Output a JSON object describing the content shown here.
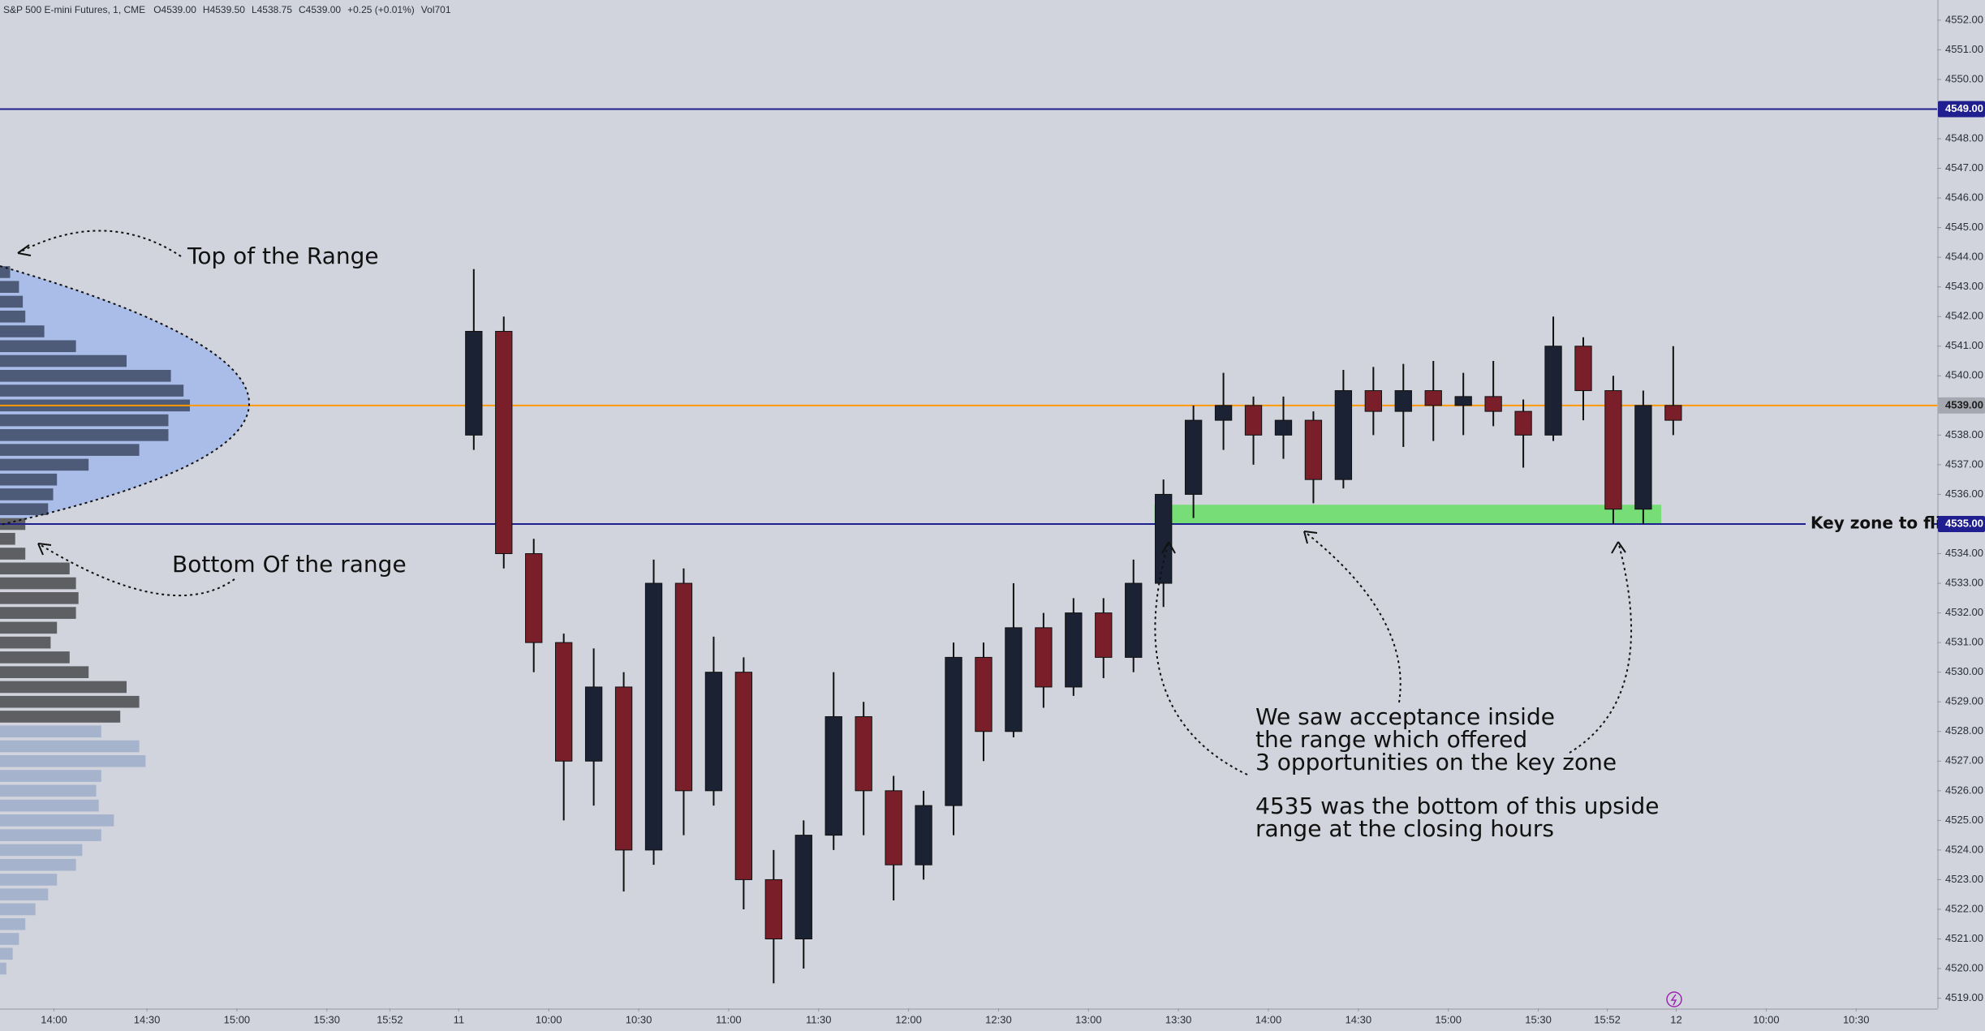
{
  "chart_data": {
    "type": "candlestick",
    "title": "S&P 500 E-mini Futures, 1, CME",
    "ohlc_readout": [
      "O4539.00",
      "H4539.50",
      "L4538.75",
      "C4539.00",
      "+0.25 (+0.01%)",
      "Vol701"
    ],
    "up_color": "#1b2233",
    "down_color": "#7a1f2a",
    "xlim": [
      -153,
      493
    ],
    "xticks": [
      {
        "value": -135,
        "label": "14:00"
      },
      {
        "value": -104,
        "label": "14:30"
      },
      {
        "value": -74,
        "label": "15:00"
      },
      {
        "value": -44,
        "label": "15:30"
      },
      {
        "value": -23,
        "label": "15:52"
      },
      {
        "value": 0,
        "label": "11"
      },
      {
        "value": 30,
        "label": "10:00"
      },
      {
        "value": 60,
        "label": "10:30"
      },
      {
        "value": 90,
        "label": "11:00"
      },
      {
        "value": 120,
        "label": "11:30"
      },
      {
        "value": 150,
        "label": "12:00"
      },
      {
        "value": 180,
        "label": "12:30"
      },
      {
        "value": 210,
        "label": "13:00"
      },
      {
        "value": 240,
        "label": "13:30"
      },
      {
        "value": 270,
        "label": "14:00"
      },
      {
        "value": 300,
        "label": "14:30"
      },
      {
        "value": 330,
        "label": "15:00"
      },
      {
        "value": 360,
        "label": "15:30"
      },
      {
        "value": 383,
        "label": "15:52"
      },
      {
        "value": 406,
        "label": "12"
      },
      {
        "value": 436,
        "label": "10:00"
      },
      {
        "value": 466,
        "label": "10:30"
      }
    ],
    "ylim": [
      4518.66,
      4552.68
    ],
    "yticks": [
      {
        "value": 4519,
        "label": "4519.00"
      },
      {
        "value": 4520,
        "label": "4520.00"
      },
      {
        "value": 4521,
        "label": "4521.00"
      },
      {
        "value": 4522,
        "label": "4522.00"
      },
      {
        "value": 4523,
        "label": "4523.00"
      },
      {
        "value": 4524,
        "label": "4524.00"
      },
      {
        "value": 4525,
        "label": "4525.00"
      },
      {
        "value": 4526,
        "label": "4526.00"
      },
      {
        "value": 4527,
        "label": "4527.00"
      },
      {
        "value": 4528,
        "label": "4528.00"
      },
      {
        "value": 4529,
        "label": "4529.00"
      },
      {
        "value": 4530,
        "label": "4530.00"
      },
      {
        "value": 4531,
        "label": "4531.00"
      },
      {
        "value": 4532,
        "label": "4532.00"
      },
      {
        "value": 4533,
        "label": "4533.00"
      },
      {
        "value": 4534,
        "label": "4534.00"
      },
      {
        "value": 4536,
        "label": "4536.00"
      },
      {
        "value": 4537,
        "label": "4537.00"
      },
      {
        "value": 4538,
        "label": "4538.00"
      },
      {
        "value": 4540,
        "label": "4540.00"
      },
      {
        "value": 4541,
        "label": "4541.00"
      },
      {
        "value": 4542,
        "label": "4542.00"
      },
      {
        "value": 4543,
        "label": "4543.00"
      },
      {
        "value": 4544,
        "label": "4544.00"
      },
      {
        "value": 4545,
        "label": "4545.00"
      },
      {
        "value": 4546,
        "label": "4546.00"
      },
      {
        "value": 4547,
        "label": "4547.00"
      },
      {
        "value": 4548,
        "label": "4548.00"
      },
      {
        "value": 4550,
        "label": "4550.00"
      },
      {
        "value": 4551,
        "label": "4551.00"
      },
      {
        "value": 4552,
        "label": "4552.00"
      }
    ],
    "hlines": [
      {
        "price": 4549,
        "label": "4549.00",
        "color": "#1f1f8f",
        "label_bg": "#1f1f8f",
        "label_color": "#ffffff"
      },
      {
        "price": 4539,
        "label": "4539.00",
        "color": "#ff9800",
        "label_bg": "#a5a8b0",
        "label_color": "#1b1b1b"
      },
      {
        "price": 4535,
        "label": "4535.00",
        "color": "#1f1f8f",
        "label_bg": "#1f1f8f",
        "label_color": "#ffffff",
        "note": "Key zone to flip"
      }
    ],
    "zone": {
      "t": [
        232,
        401
      ],
      "price": [
        4535,
        4535.65
      ],
      "color": "#77dd77"
    },
    "candles": [
      {
        "t": 0,
        "o": 4538,
        "h": 4543.6,
        "l": 4537.5,
        "c": 4541.5
      },
      {
        "t": 10,
        "o": 4541.5,
        "h": 4542,
        "l": 4533.5,
        "c": 4534
      },
      {
        "t": 20,
        "o": 4534,
        "h": 4534.5,
        "l": 4530,
        "c": 4531
      },
      {
        "t": 30,
        "o": 4531,
        "h": 4531.3,
        "l": 4525,
        "c": 4527
      },
      {
        "t": 40,
        "o": 4527,
        "h": 4530.8,
        "l": 4525.5,
        "c": 4529.5
      },
      {
        "t": 50,
        "o": 4529.5,
        "h": 4530,
        "l": 4522.6,
        "c": 4524
      },
      {
        "t": 60,
        "o": 4524,
        "h": 4533.8,
        "l": 4523.5,
        "c": 4533
      },
      {
        "t": 70,
        "o": 4533,
        "h": 4533.5,
        "l": 4524.5,
        "c": 4526
      },
      {
        "t": 80,
        "o": 4526,
        "h": 4531.2,
        "l": 4525.5,
        "c": 4530
      },
      {
        "t": 90,
        "o": 4530,
        "h": 4530.5,
        "l": 4522,
        "c": 4523
      },
      {
        "t": 100,
        "o": 4523,
        "h": 4524,
        "l": 4519.5,
        "c": 4521
      },
      {
        "t": 110,
        "o": 4521,
        "h": 4525,
        "l": 4520,
        "c": 4524.5
      },
      {
        "t": 120,
        "o": 4524.5,
        "h": 4530,
        "l": 4524,
        "c": 4528.5
      },
      {
        "t": 130,
        "o": 4528.5,
        "h": 4529,
        "l": 4524.5,
        "c": 4526
      },
      {
        "t": 140,
        "o": 4526,
        "h": 4526.5,
        "l": 4522.3,
        "c": 4523.5
      },
      {
        "t": 150,
        "o": 4523.5,
        "h": 4526,
        "l": 4523,
        "c": 4525.5
      },
      {
        "t": 160,
        "o": 4525.5,
        "h": 4531,
        "l": 4524.5,
        "c": 4530.5
      },
      {
        "t": 170,
        "o": 4530.5,
        "h": 4531,
        "l": 4527,
        "c": 4528
      },
      {
        "t": 180,
        "o": 4528,
        "h": 4533,
        "l": 4527.8,
        "c": 4531.5
      },
      {
        "t": 190,
        "o": 4531.5,
        "h": 4532,
        "l": 4528.8,
        "c": 4529.5
      },
      {
        "t": 200,
        "o": 4529.5,
        "h": 4532.5,
        "l": 4529.2,
        "c": 4532
      },
      {
        "t": 210,
        "o": 4532,
        "h": 4532.5,
        "l": 4529.8,
        "c": 4530.5
      },
      {
        "t": 220,
        "o": 4530.5,
        "h": 4533.8,
        "l": 4530,
        "c": 4533
      },
      {
        "t": 230,
        "o": 4533,
        "h": 4536.5,
        "l": 4532.2,
        "c": 4536
      },
      {
        "t": 240,
        "o": 4536,
        "h": 4539,
        "l": 4535.2,
        "c": 4538.5
      },
      {
        "t": 250,
        "o": 4538.5,
        "h": 4540.1,
        "l": 4537.5,
        "c": 4539
      },
      {
        "t": 260,
        "o": 4539,
        "h": 4539.3,
        "l": 4537,
        "c": 4538
      },
      {
        "t": 270,
        "o": 4538,
        "h": 4539.3,
        "l": 4537.2,
        "c": 4538.5
      },
      {
        "t": 280,
        "o": 4538.5,
        "h": 4538.8,
        "l": 4535.7,
        "c": 4536.5
      },
      {
        "t": 290,
        "o": 4536.5,
        "h": 4540.2,
        "l": 4536.2,
        "c": 4539.5
      },
      {
        "t": 300,
        "o": 4539.5,
        "h": 4540.3,
        "l": 4538,
        "c": 4538.8
      },
      {
        "t": 310,
        "o": 4538.8,
        "h": 4540.4,
        "l": 4537.6,
        "c": 4539.5
      },
      {
        "t": 320,
        "o": 4539.5,
        "h": 4540.5,
        "l": 4537.8,
        "c": 4539
      },
      {
        "t": 330,
        "o": 4539,
        "h": 4540.1,
        "l": 4538,
        "c": 4539.3
      },
      {
        "t": 340,
        "o": 4539.3,
        "h": 4540.5,
        "l": 4538.3,
        "c": 4538.8
      },
      {
        "t": 350,
        "o": 4538.8,
        "h": 4539.2,
        "l": 4536.9,
        "c": 4538
      },
      {
        "t": 360,
        "o": 4538,
        "h": 4542,
        "l": 4537.8,
        "c": 4541
      },
      {
        "t": 370,
        "o": 4541,
        "h": 4541.3,
        "l": 4538.5,
        "c": 4539.5
      },
      {
        "t": 380,
        "o": 4539.5,
        "h": 4540,
        "l": 4535,
        "c": 4535.5
      },
      {
        "t": 390,
        "o": 4535.5,
        "h": 4539.5,
        "l": 4535,
        "c": 4539
      },
      {
        "t": 400,
        "o": 4539,
        "h": 4541,
        "l": 4538,
        "c": 4538.5
      }
    ],
    "volume_profile": {
      "prices": [
        4543.5,
        4543,
        4542.5,
        4542,
        4541.5,
        4541,
        4540.5,
        4540,
        4539.5,
        4539,
        4538.5,
        4538,
        4537.5,
        4537,
        4536.5,
        4536,
        4535.5,
        4535,
        4534.5,
        4534,
        4533.5,
        4533,
        4532.5,
        4532,
        4531.5,
        4531,
        4530.5,
        4530,
        4529.5,
        4529,
        4528.5,
        4528,
        4527.5,
        4527,
        4526.5,
        4526,
        4525.5,
        4525,
        4524.5,
        4524,
        4523.5,
        4523,
        4522.5,
        4522,
        4521.5,
        4521,
        4520.5,
        4520
      ],
      "volumes": [
        8,
        15,
        18,
        20,
        35,
        60,
        100,
        135,
        145,
        150,
        133,
        133,
        110,
        70,
        45,
        42,
        38,
        20,
        12,
        20,
        55,
        60,
        62,
        60,
        45,
        40,
        55,
        70,
        100,
        110,
        95,
        80,
        110,
        115,
        80,
        76,
        78,
        90,
        80,
        65,
        60,
        45,
        38,
        28,
        20,
        15,
        10,
        5
      ],
      "bands": [
        {
          "min": 4535.5,
          "max": 4543.5,
          "color": "#4d5a78"
        },
        {
          "min": 4528.5,
          "max": 4535,
          "color": "#5e5f63"
        },
        {
          "min": 4520,
          "max": 4528,
          "color": "#a6b3cc"
        }
      ]
    },
    "annotations": [
      "Top of the Range",
      "Bottom Of the range",
      "We saw acceptance inside",
      "the range which offered",
      "3 opportunities on the key zone",
      "4535 was the bottom of this upside",
      "range at the closing hours"
    ]
  }
}
